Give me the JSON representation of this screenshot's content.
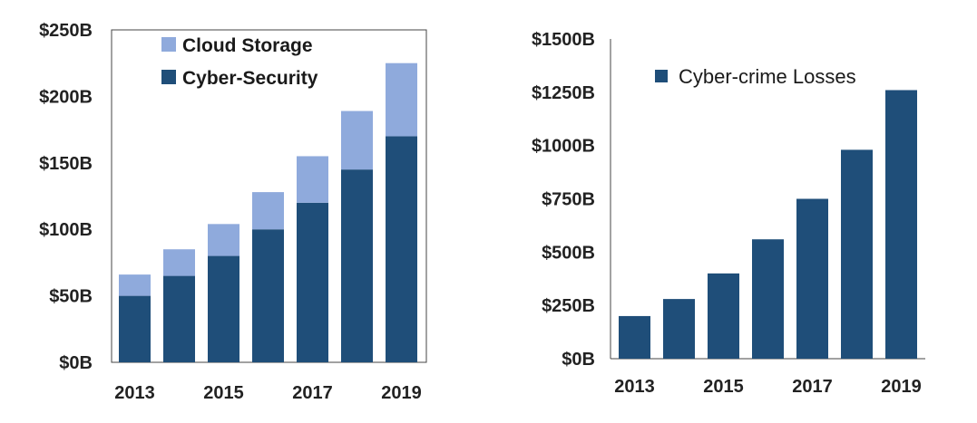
{
  "chart_data": [
    {
      "type": "bar",
      "stacked": true,
      "categories": [
        "2013",
        "2014",
        "2015",
        "2016",
        "2017",
        "2018",
        "2019"
      ],
      "x_tick_labels": [
        "2013",
        "2015",
        "2017",
        "2019"
      ],
      "series": [
        {
          "name": "Cyber-Security",
          "values": [
            50,
            65,
            80,
            100,
            120,
            145,
            170
          ],
          "color": "#1f4e79"
        },
        {
          "name": "Cloud Storage",
          "values": [
            16,
            20,
            24,
            28,
            35,
            44,
            55
          ],
          "color": "#8faadc"
        }
      ],
      "ylim": [
        0,
        250
      ],
      "y_ticks": [
        0,
        50,
        100,
        150,
        200,
        250
      ],
      "y_tick_labels": [
        "$0B",
        "$50B",
        "$100B",
        "$150B",
        "$200B",
        "$250B"
      ],
      "title": "",
      "xlabel": "",
      "ylabel": "",
      "grid": false,
      "legend": {
        "position": "top-left",
        "entries": [
          "Cloud Storage",
          "Cyber-Security"
        ]
      }
    },
    {
      "type": "bar",
      "categories": [
        "2013",
        "2014",
        "2015",
        "2016",
        "2017",
        "2018",
        "2019"
      ],
      "x_tick_labels": [
        "2013",
        "2015",
        "2017",
        "2019"
      ],
      "series": [
        {
          "name": "Cyber-crime Losses",
          "values": [
            200,
            280,
            400,
            560,
            750,
            980,
            1260
          ],
          "color": "#1f4e79"
        }
      ],
      "ylim": [
        0,
        1500
      ],
      "y_ticks": [
        0,
        250,
        500,
        750,
        1000,
        1250,
        1500
      ],
      "y_tick_labels": [
        "$0B",
        "$250B",
        "$500B",
        "$750B",
        "$1000B",
        "$1250B",
        "$1500B"
      ],
      "title": "",
      "xlabel": "",
      "ylabel": "",
      "grid": false,
      "legend": {
        "position": "top-left",
        "entries": [
          "Cyber-crime Losses"
        ]
      }
    }
  ]
}
